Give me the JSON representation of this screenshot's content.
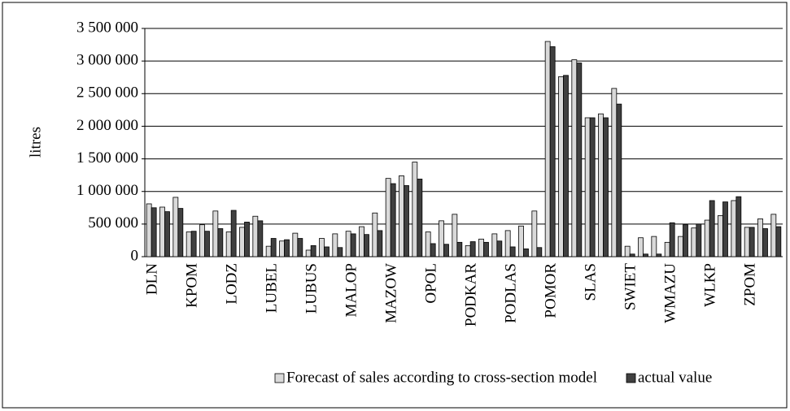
{
  "chart_data": {
    "type": "bar",
    "y_label": "litres",
    "categories": [
      "DLN",
      null,
      null,
      "KPOM",
      null,
      null,
      "LODZ",
      null,
      null,
      "LUBEL",
      null,
      null,
      "LUBUS",
      null,
      null,
      "MALOP",
      null,
      null,
      "MAZOW",
      null,
      null,
      "OPOL",
      null,
      null,
      "PODKAR",
      null,
      null,
      "PODLAS",
      null,
      null,
      "POMOR",
      null,
      null,
      "SLAS",
      null,
      null,
      "SWIET",
      null,
      null,
      "WMAZU",
      null,
      null,
      "WLKP",
      null,
      null,
      "ZPOM",
      null,
      null
    ],
    "series": [
      {
        "name": "Forecast of sales according to cross-section model",
        "color": "#d9d9d9",
        "values": [
          810000,
          760000,
          910000,
          380000,
          490000,
          700000,
          380000,
          450000,
          620000,
          160000,
          240000,
          360000,
          100000,
          280000,
          350000,
          390000,
          460000,
          670000,
          1200000,
          1240000,
          1450000,
          380000,
          550000,
          650000,
          170000,
          270000,
          350000,
          400000,
          470000,
          700000,
          3300000,
          2760000,
          3020000,
          2130000,
          2190000,
          2580000,
          160000,
          290000,
          310000,
          220000,
          310000,
          440000,
          560000,
          630000,
          860000,
          450000,
          580000,
          650000
        ]
      },
      {
        "name": "actual value",
        "color": "#404040",
        "values": [
          750000,
          690000,
          740000,
          390000,
          390000,
          430000,
          710000,
          530000,
          550000,
          280000,
          260000,
          280000,
          170000,
          150000,
          140000,
          350000,
          340000,
          400000,
          1120000,
          1090000,
          1190000,
          200000,
          190000,
          220000,
          230000,
          220000,
          240000,
          150000,
          120000,
          140000,
          3220000,
          2780000,
          2970000,
          2130000,
          2130000,
          2340000,
          40000,
          40000,
          40000,
          520000,
          490000,
          500000,
          860000,
          840000,
          920000,
          450000,
          430000,
          460000
        ]
      }
    ],
    "ylim": [
      0,
      3500000
    ],
    "yticks": [
      0,
      {
        "value": 500000,
        "label": "500 000"
      },
      {
        "value": 1000000,
        "label": "1 000 000"
      },
      {
        "value": 1500000,
        "label": "1 500 000"
      },
      {
        "value": 2000000,
        "label": "2 000 000"
      },
      {
        "value": 2500000,
        "label": "2 500 000"
      },
      {
        "value": 3000000,
        "label": "3 000 000"
      },
      {
        "value": 3500000,
        "label": "3 500 000"
      }
    ],
    "grid": true,
    "legend": "bottom"
  }
}
